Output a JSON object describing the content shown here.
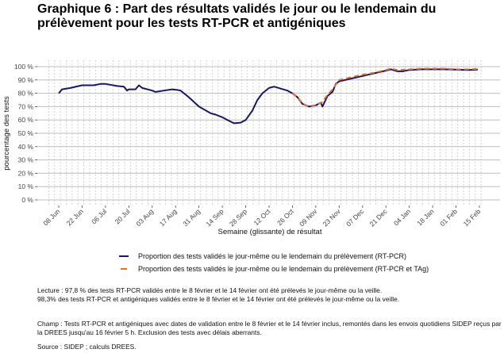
{
  "title": "Graphique 6 : Part des résultats validés le jour ou le lendemain du prélèvement pour les tests RT-PCR et antigéniques",
  "chart_data": {
    "type": "line",
    "title": "Graphique 6 : Part des résultats validés le jour ou le lendemain du prélèvement pour les tests RT-PCR et antigéniques",
    "xlabel": "Semaine (glissante) de résultat",
    "ylabel": "pourcentage des tests",
    "ylim": [
      0,
      100
    ],
    "xlim": [
      "2020-06-02",
      "2021-02-18"
    ],
    "grid": true,
    "legend_position": "bottom",
    "y_ticks": [
      "0 %",
      "10 %",
      "20 %",
      "30 %",
      "40 %",
      "50 %",
      "60 %",
      "70 %",
      "80 %",
      "90 %",
      "100 %"
    ],
    "x_ticks": [
      {
        "date": "2020-06-08",
        "label": "08 Jun"
      },
      {
        "date": "2020-06-22",
        "label": "22 Jun"
      },
      {
        "date": "2020-07-06",
        "label": "06 Jul"
      },
      {
        "date": "2020-07-20",
        "label": "20 Jul"
      },
      {
        "date": "2020-08-03",
        "label": "03 Aug"
      },
      {
        "date": "2020-08-17",
        "label": "17 Aug"
      },
      {
        "date": "2020-08-31",
        "label": "31 Aug"
      },
      {
        "date": "2020-09-14",
        "label": "14 Sep"
      },
      {
        "date": "2020-09-28",
        "label": "28 Sep"
      },
      {
        "date": "2020-10-12",
        "label": "12 Oct"
      },
      {
        "date": "2020-10-26",
        "label": "26 Oct"
      },
      {
        "date": "2020-11-09",
        "label": "09 Nov"
      },
      {
        "date": "2020-11-23",
        "label": "23 Nov"
      },
      {
        "date": "2020-12-07",
        "label": "07 Dec"
      },
      {
        "date": "2020-12-21",
        "label": "21 Dec"
      },
      {
        "date": "2021-01-04",
        "label": "04 Jan"
      },
      {
        "date": "2021-01-18",
        "label": "18 Jan"
      },
      {
        "date": "2021-02-01",
        "label": "01 Feb"
      },
      {
        "date": "2021-02-15",
        "label": "15 Feb"
      }
    ],
    "series": [
      {
        "name": "Proportion des tests validés le jour-même ou le lendemain du prélèvement (RT-PCR)",
        "color": "#14176b",
        "style": "solid",
        "x": [
          "2020-06-08",
          "2020-06-10",
          "2020-06-15",
          "2020-06-22",
          "2020-06-29",
          "2020-07-03",
          "2020-07-06",
          "2020-07-13",
          "2020-07-17",
          "2020-07-19",
          "2020-07-20",
          "2020-07-24",
          "2020-07-26",
          "2020-07-28",
          "2020-08-03",
          "2020-08-05",
          "2020-08-10",
          "2020-08-15",
          "2020-08-18",
          "2020-08-20",
          "2020-08-25",
          "2020-08-31",
          "2020-09-07",
          "2020-09-10",
          "2020-09-14",
          "2020-09-17",
          "2020-09-21",
          "2020-09-25",
          "2020-09-28",
          "2020-10-02",
          "2020-10-05",
          "2020-10-08",
          "2020-10-12",
          "2020-10-15",
          "2020-10-19",
          "2020-10-23",
          "2020-10-26",
          "2020-10-29",
          "2020-11-01",
          "2020-11-05",
          "2020-11-09",
          "2020-11-12",
          "2020-11-13",
          "2020-11-16",
          "2020-11-19",
          "2020-11-21",
          "2020-11-23",
          "2020-11-30",
          "2020-12-07",
          "2020-12-14",
          "2020-12-21",
          "2020-12-24",
          "2020-12-28",
          "2020-12-31",
          "2021-01-04",
          "2021-01-11",
          "2021-01-18",
          "2021-01-25",
          "2021-02-01",
          "2021-02-08",
          "2021-02-14"
        ],
        "values": [
          80,
          83,
          84,
          86,
          86,
          87,
          87,
          85.5,
          85,
          82,
          83,
          83,
          86,
          84,
          82,
          81,
          82,
          83,
          82.5,
          82,
          77,
          70,
          65,
          64,
          62,
          60,
          57.5,
          58,
          60,
          67,
          75,
          80,
          84,
          85,
          83.5,
          82,
          80,
          77,
          72,
          70,
          71,
          73,
          70,
          78,
          81,
          87,
          89,
          91,
          93,
          95,
          97,
          98,
          96.5,
          96.5,
          97.5,
          98,
          98,
          98,
          97.8,
          97.5,
          97.8
        ]
      },
      {
        "name": "Proportion des tests validés le jour-même ou le lendemain du prélèvement (RT-PCR et TAg)",
        "color": "#e8702a",
        "style": "dashed",
        "x": [
          "2020-10-26",
          "2020-10-29",
          "2020-11-01",
          "2020-11-05",
          "2020-11-09",
          "2020-11-13",
          "2020-11-16",
          "2020-11-19",
          "2020-11-23",
          "2020-11-30",
          "2020-12-07",
          "2020-12-14",
          "2020-12-21",
          "2020-12-24",
          "2020-12-28",
          "2021-01-04",
          "2021-01-11",
          "2021-01-18",
          "2021-01-25",
          "2021-02-01",
          "2021-02-08",
          "2021-02-14"
        ],
        "values": [
          80,
          77,
          72.5,
          69.5,
          71,
          73.5,
          79,
          83,
          90,
          92,
          94,
          95.5,
          97.5,
          98.5,
          97.5,
          98,
          98.5,
          98.5,
          98.5,
          98,
          98,
          98.3
        ]
      }
    ]
  },
  "notes": {
    "lecture_1": "Lecture : 97,8 % des tests RT-PCR validés entre le 8 février et le 14 février ont été prélevés le jour-même ou la veille.",
    "lecture_2": "98,3% des tests RT-PCR et antigéniques validés entre le 8 février et le 14 février ont été prélevés le jour-même ou la veille.",
    "champ": "Champ : Tests RT-PCR et antigéniques avec dates de validation entre le 8 février et le 14 février inclus, remontés dans les envois quotidiens SIDEP reçus par la DREES jusqu'au 16 février 5 h. Exclusion des tests avec délais aberrants.",
    "source": "Source : SIDEP ; calculs DREES."
  }
}
